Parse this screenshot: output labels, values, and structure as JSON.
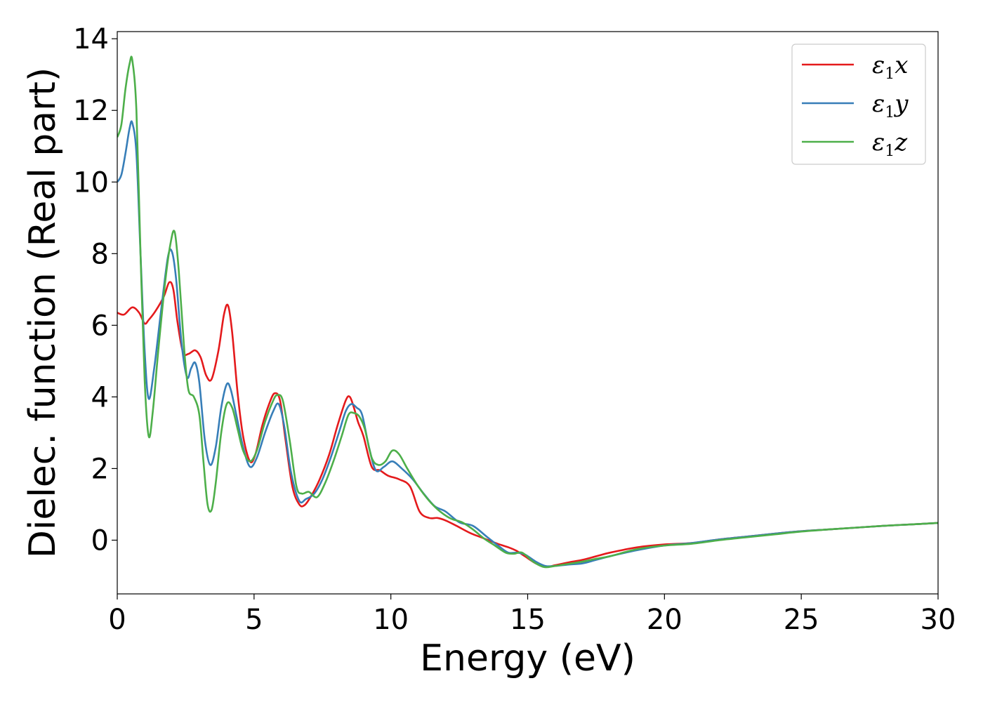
{
  "chart_data": {
    "type": "line",
    "title": "",
    "xlabel": "Energy (eV)",
    "ylabel": "Dielec. function (Real part)",
    "xlim": [
      0,
      30
    ],
    "ylim": [
      -1.5,
      14.2
    ],
    "xticks": [
      0,
      5,
      10,
      15,
      20,
      25,
      30
    ],
    "yticks": [
      0,
      2,
      4,
      6,
      8,
      10,
      12,
      14
    ],
    "grid": false,
    "legend_position": "top-right",
    "series": [
      {
        "name": "ε₁x",
        "legend_base": "ε",
        "legend_sub": "1",
        "legend_var": "x",
        "color": "#e41a1c",
        "x": [
          0,
          0.25,
          0.55,
          0.8,
          1.0,
          1.15,
          1.4,
          1.7,
          1.9,
          2.05,
          2.2,
          2.4,
          2.6,
          2.85,
          3.05,
          3.25,
          3.45,
          3.7,
          3.9,
          4.05,
          4.2,
          4.4,
          4.6,
          4.85,
          5.05,
          5.3,
          5.55,
          5.75,
          5.95,
          6.15,
          6.4,
          6.65,
          6.85,
          7.1,
          7.4,
          7.75,
          8.05,
          8.35,
          8.5,
          8.65,
          8.8,
          9.0,
          9.3,
          9.6,
          9.9,
          10.3,
          10.7,
          11.05,
          11.4,
          11.7,
          12.0,
          12.4,
          12.9,
          13.4,
          13.9,
          14.3,
          14.6,
          14.9,
          15.3,
          15.65,
          16.0,
          16.5,
          17.0,
          17.5,
          18.0,
          19.0,
          20.0,
          21.0,
          22.0,
          23.0,
          24.0,
          25.0,
          26.0,
          27.0,
          28.0,
          29.0,
          30.0
        ],
        "y": [
          6.35,
          6.3,
          6.5,
          6.35,
          6.05,
          6.15,
          6.4,
          6.8,
          7.2,
          7.0,
          6.1,
          5.25,
          5.2,
          5.3,
          5.1,
          4.6,
          4.5,
          5.3,
          6.3,
          6.55,
          5.8,
          4.1,
          2.9,
          2.2,
          2.4,
          3.2,
          3.8,
          4.1,
          3.9,
          2.8,
          1.5,
          1.0,
          0.98,
          1.25,
          1.7,
          2.4,
          3.2,
          3.9,
          4.0,
          3.7,
          3.3,
          2.9,
          2.05,
          1.95,
          1.8,
          1.7,
          1.5,
          0.8,
          0.62,
          0.62,
          0.55,
          0.4,
          0.2,
          0.05,
          -0.1,
          -0.2,
          -0.3,
          -0.45,
          -0.65,
          -0.75,
          -0.7,
          -0.62,
          -0.55,
          -0.45,
          -0.35,
          -0.2,
          -0.12,
          -0.08,
          0.02,
          0.1,
          0.18,
          0.25,
          0.3,
          0.35,
          0.4,
          0.44,
          0.48
        ]
      },
      {
        "name": "ε₁y",
        "legend_base": "ε",
        "legend_sub": "1",
        "legend_var": "y",
        "color": "#377eb8",
        "x": [
          0,
          0.15,
          0.3,
          0.45,
          0.55,
          0.7,
          0.85,
          1.0,
          1.15,
          1.35,
          1.6,
          1.85,
          2.0,
          2.15,
          2.35,
          2.55,
          2.7,
          2.85,
          3.0,
          3.2,
          3.4,
          3.6,
          3.8,
          4.0,
          4.15,
          4.35,
          4.6,
          4.85,
          5.1,
          5.4,
          5.7,
          5.9,
          6.1,
          6.35,
          6.65,
          6.9,
          7.2,
          7.5,
          7.8,
          8.1,
          8.35,
          8.55,
          8.75,
          8.95,
          9.2,
          9.45,
          9.75,
          10.05,
          10.4,
          10.8,
          11.2,
          11.6,
          12.0,
          12.5,
          13.0,
          13.5,
          14.0,
          14.3,
          14.6,
          14.9,
          15.3,
          15.65,
          16.0,
          16.5,
          17.0,
          17.5,
          18.0,
          19.0,
          20.0,
          21.0,
          22.0,
          23.0,
          24.0,
          25.0,
          26.0,
          27.0,
          28.0,
          29.0,
          30.0
        ],
        "y": [
          10.0,
          10.2,
          10.8,
          11.5,
          11.65,
          10.8,
          8.0,
          5.3,
          3.95,
          4.8,
          6.4,
          7.9,
          8.05,
          7.3,
          5.5,
          4.55,
          4.8,
          4.95,
          4.4,
          2.8,
          2.1,
          2.6,
          3.7,
          4.35,
          4.2,
          3.5,
          2.6,
          2.05,
          2.3,
          3.0,
          3.6,
          3.8,
          3.2,
          1.9,
          1.1,
          1.15,
          1.3,
          1.7,
          2.3,
          3.0,
          3.6,
          3.8,
          3.7,
          3.5,
          2.6,
          1.95,
          2.05,
          2.2,
          2.0,
          1.7,
          1.3,
          0.95,
          0.8,
          0.5,
          0.4,
          0.1,
          -0.2,
          -0.35,
          -0.35,
          -0.4,
          -0.6,
          -0.72,
          -0.72,
          -0.68,
          -0.65,
          -0.55,
          -0.45,
          -0.28,
          -0.15,
          -0.08,
          0.02,
          0.1,
          0.18,
          0.25,
          0.3,
          0.35,
          0.4,
          0.44,
          0.48
        ]
      },
      {
        "name": "ε₁z",
        "legend_base": "ε",
        "legend_sub": "1",
        "legend_var": "z",
        "color": "#4daf4a",
        "x": [
          0,
          0.15,
          0.3,
          0.45,
          0.55,
          0.7,
          0.85,
          1.0,
          1.15,
          1.3,
          1.5,
          1.75,
          1.95,
          2.1,
          2.25,
          2.45,
          2.6,
          2.8,
          3.0,
          3.15,
          3.3,
          3.45,
          3.6,
          3.8,
          4.0,
          4.2,
          4.4,
          4.6,
          4.85,
          5.1,
          5.4,
          5.7,
          5.85,
          6.05,
          6.3,
          6.55,
          6.75,
          7.0,
          7.3,
          7.6,
          7.9,
          8.2,
          8.45,
          8.65,
          8.85,
          9.05,
          9.3,
          9.55,
          9.8,
          10.05,
          10.3,
          10.6,
          11.0,
          11.4,
          11.8,
          12.2,
          12.6,
          13.0,
          13.4,
          13.8,
          14.2,
          14.5,
          14.8,
          15.2,
          15.6,
          16.0,
          16.5,
          17.0,
          17.5,
          18.0,
          19.0,
          20.0,
          21.0,
          22.0,
          23.0,
          24.0,
          25.0,
          26.0,
          27.0,
          28.0,
          29.0,
          30.0
        ],
        "y": [
          11.25,
          11.6,
          12.6,
          13.3,
          13.4,
          12.0,
          8.0,
          4.5,
          2.9,
          3.6,
          5.3,
          7.2,
          8.3,
          8.6,
          7.5,
          5.3,
          4.2,
          4.0,
          3.5,
          2.2,
          1.0,
          0.85,
          1.6,
          3.0,
          3.8,
          3.7,
          3.1,
          2.5,
          2.2,
          2.5,
          3.3,
          3.9,
          4.05,
          3.9,
          2.8,
          1.5,
          1.3,
          1.35,
          1.2,
          1.6,
          2.2,
          2.9,
          3.5,
          3.55,
          3.45,
          3.1,
          2.3,
          2.1,
          2.2,
          2.5,
          2.4,
          2.0,
          1.5,
          1.1,
          0.8,
          0.6,
          0.5,
          0.3,
          0.05,
          -0.15,
          -0.35,
          -0.38,
          -0.35,
          -0.6,
          -0.75,
          -0.72,
          -0.66,
          -0.6,
          -0.52,
          -0.45,
          -0.25,
          -0.15,
          -0.1,
          0.0,
          0.08,
          0.16,
          0.24,
          0.3,
          0.35,
          0.4,
          0.44,
          0.48
        ]
      }
    ]
  }
}
